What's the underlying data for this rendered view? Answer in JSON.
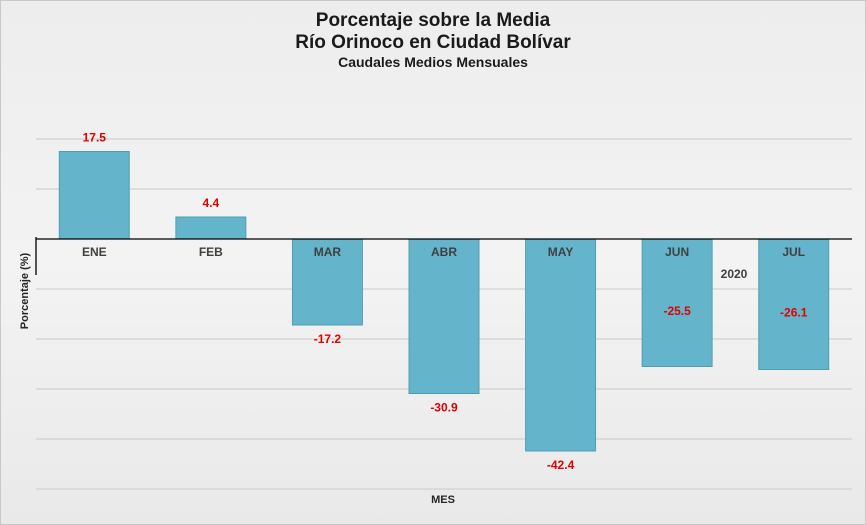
{
  "chart_data": {
    "type": "bar",
    "title": "Porcentaje sobre la Media",
    "subtitle": "Río Orinoco en Ciudad Bolívar",
    "subtitle2": "Caudales Medios Mensuales",
    "xlabel": "MES",
    "ylabel": "Porcentaje (%)",
    "series_label": "2020",
    "categories": [
      "ENE",
      "FEB",
      "MAR",
      "ABR",
      "MAY",
      "JUN",
      "JUL"
    ],
    "values": [
      17.5,
      4.4,
      -17.2,
      -30.9,
      -42.4,
      -25.5,
      -26.1
    ],
    "data_labels": [
      "17.5",
      "4.4",
      "-17.2",
      "-30.9",
      "-42.4",
      "-25.5",
      "-26.1"
    ],
    "ylim": [
      -50,
      20
    ],
    "grid": true,
    "bar_color": "#64b5cc",
    "label_color": "#e00000"
  }
}
